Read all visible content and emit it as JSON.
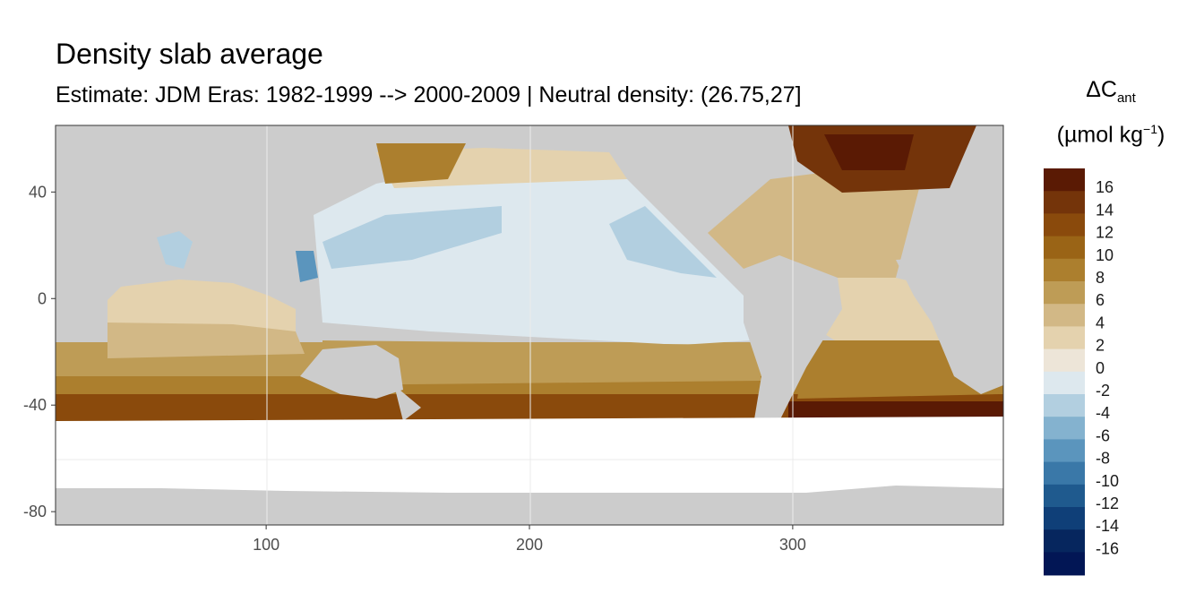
{
  "title": "Density slab average",
  "subtitle": "Estimate: JDM Eras: 1982-1999 --> 2000-2009 | Neutral density: (26.75,27]",
  "legend": {
    "title_delta": "ΔC",
    "title_sub": "ant",
    "unit_open": "(µmol kg",
    "unit_sup": "−1",
    "unit_close": ")",
    "bins": [
      {
        "label": "16",
        "color": "#5a1a04"
      },
      {
        "label": "14",
        "color": "#74340a"
      },
      {
        "label": "12",
        "color": "#8a4a0c"
      },
      {
        "label": "10",
        "color": "#9a6416"
      },
      {
        "label": "8",
        "color": "#ac7f2e"
      },
      {
        "label": "6",
        "color": "#be9c56"
      },
      {
        "label": "4",
        "color": "#d2b886"
      },
      {
        "label": "2",
        "color": "#e4d2ae"
      },
      {
        "label": "0",
        "color": "#ede5d8"
      },
      {
        "label": "-2",
        "color": "#dde8ee"
      },
      {
        "label": "-4",
        "color": "#b2cfe0"
      },
      {
        "label": "-6",
        "color": "#84b2cf"
      },
      {
        "label": "-8",
        "color": "#5b95bd"
      },
      {
        "label": "-10",
        "color": "#3a78a8"
      },
      {
        "label": "-12",
        "color": "#1f5a8e"
      },
      {
        "label": "-14",
        "color": "#0f3f78"
      },
      {
        "label": "-16",
        "color": "#06265e"
      }
    ],
    "bottom_color": "#021655"
  },
  "map_data": {
    "x_ticks": [
      100,
      200,
      300
    ],
    "y_ticks": [
      40,
      0,
      -40,
      -80
    ],
    "x_range": [
      20,
      380
    ],
    "y_range": [
      -85,
      65
    ],
    "land_color": "#cccccc",
    "nodata_color": "#ffffff",
    "grid_color": "#ebebeb"
  }
}
